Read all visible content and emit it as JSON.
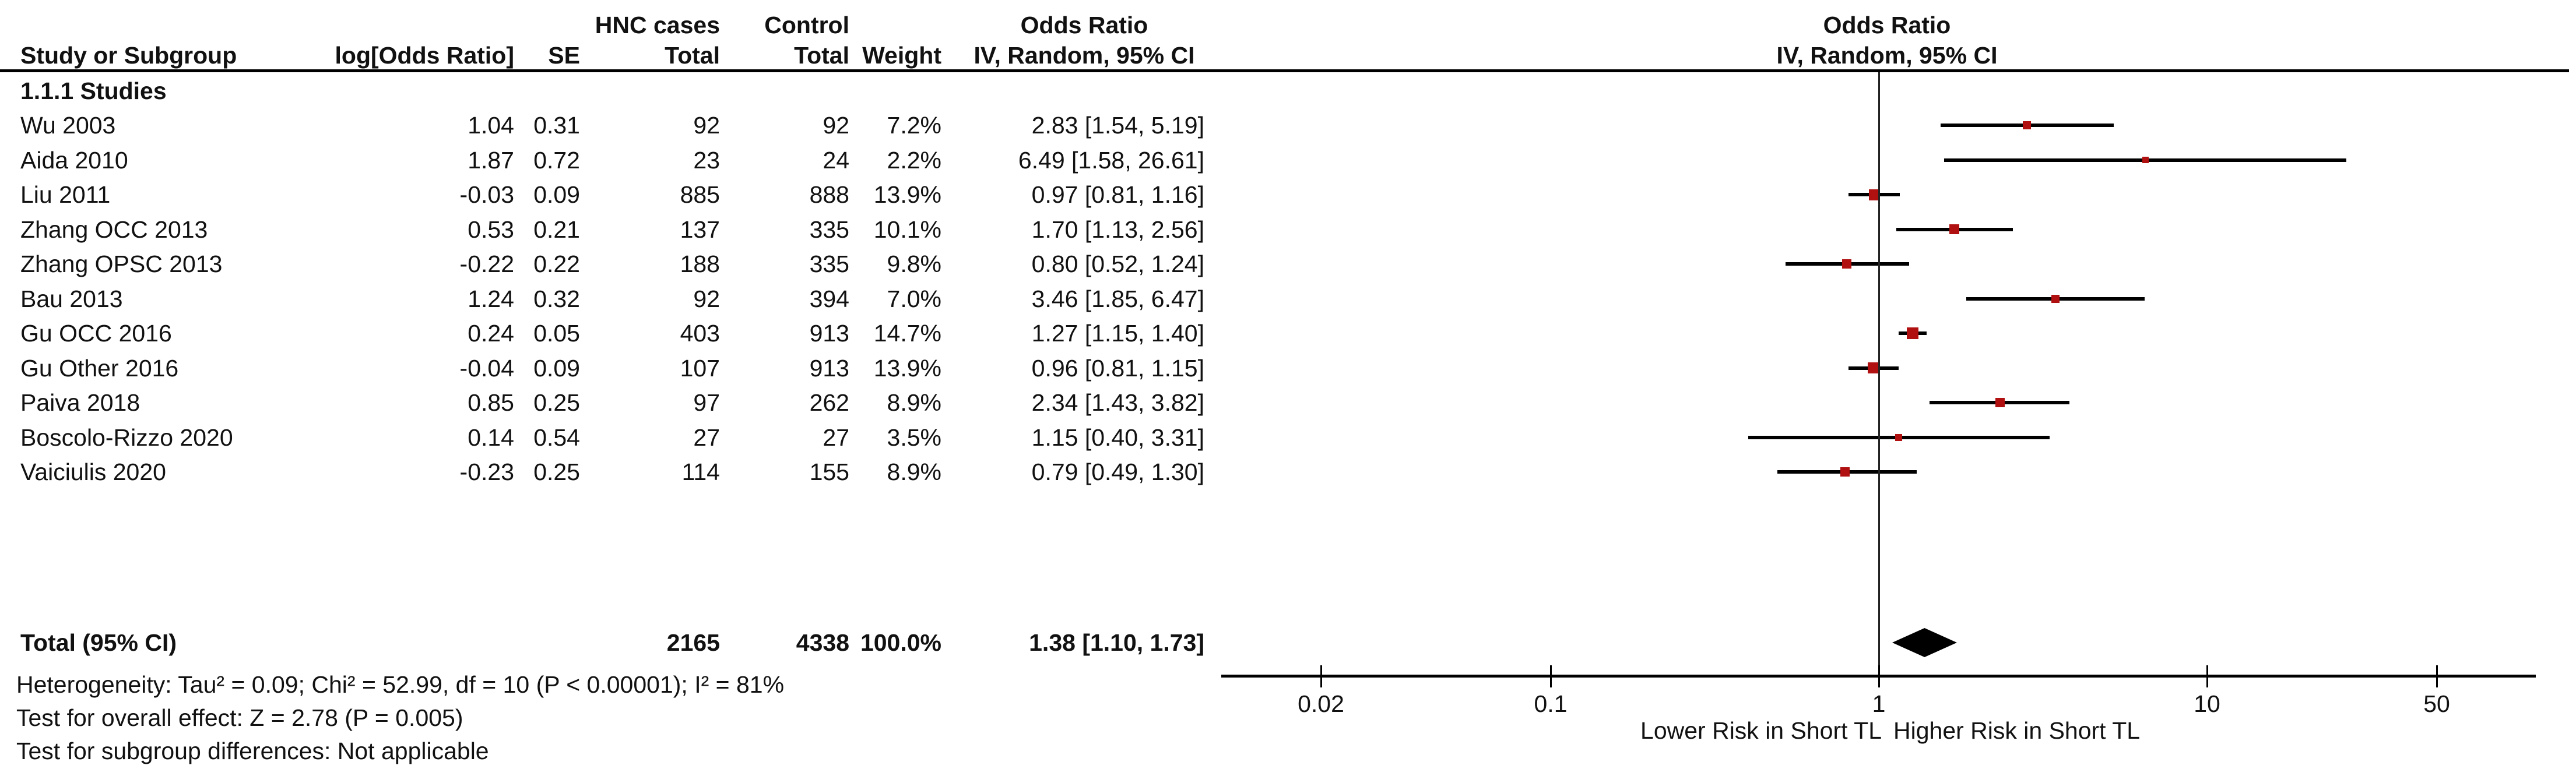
{
  "header": {
    "row1": {
      "hnc_cases": "HNC cases",
      "control": "Control",
      "odds_ratio_left": "Odds Ratio",
      "odds_ratio_right": "Odds Ratio"
    },
    "row2": {
      "study_or_subgroup": "Study or Subgroup",
      "log_odds_ratio": "log[Odds Ratio]",
      "se": "SE",
      "total_hnc": "Total",
      "total_control": "Total",
      "weight": "Weight",
      "iv_random_left": "IV, Random, 95% CI",
      "iv_random_right": "IV, Random, 95% CI"
    }
  },
  "chart_data": {
    "type": "forest",
    "effect_measure": "Odds Ratio",
    "model": "IV, Random, 95% CI",
    "subgroup_label": "1.1.1 Studies",
    "studies": [
      {
        "name": "Wu 2003",
        "log_or": "1.04",
        "se": "0.31",
        "hnc_total": "92",
        "control_total": "92",
        "weight": "7.2%",
        "weight_num": 7.2,
        "or_ci_text": "2.83 [1.54, 5.19]",
        "or": 2.83,
        "lo": 1.54,
        "hi": 5.19
      },
      {
        "name": "Aida 2010",
        "log_or": "1.87",
        "se": "0.72",
        "hnc_total": "23",
        "control_total": "24",
        "weight": "2.2%",
        "weight_num": 2.2,
        "or_ci_text": "6.49 [1.58, 26.61]",
        "or": 6.49,
        "lo": 1.58,
        "hi": 26.61
      },
      {
        "name": "Liu 2011",
        "log_or": "-0.03",
        "se": "0.09",
        "hnc_total": "885",
        "control_total": "888",
        "weight": "13.9%",
        "weight_num": 13.9,
        "or_ci_text": "0.97 [0.81, 1.16]",
        "or": 0.97,
        "lo": 0.81,
        "hi": 1.16
      },
      {
        "name": "Zhang OCC 2013",
        "log_or": "0.53",
        "se": "0.21",
        "hnc_total": "137",
        "control_total": "335",
        "weight": "10.1%",
        "weight_num": 10.1,
        "or_ci_text": "1.70 [1.13, 2.56]",
        "or": 1.7,
        "lo": 1.13,
        "hi": 2.56
      },
      {
        "name": "Zhang OPSC 2013",
        "log_or": "-0.22",
        "se": "0.22",
        "hnc_total": "188",
        "control_total": "335",
        "weight": "9.8%",
        "weight_num": 9.8,
        "or_ci_text": "0.80 [0.52, 1.24]",
        "or": 0.8,
        "lo": 0.52,
        "hi": 1.24
      },
      {
        "name": "Bau 2013",
        "log_or": "1.24",
        "se": "0.32",
        "hnc_total": "92",
        "control_total": "394",
        "weight": "7.0%",
        "weight_num": 7.0,
        "or_ci_text": "3.46 [1.85, 6.47]",
        "or": 3.46,
        "lo": 1.85,
        "hi": 6.47
      },
      {
        "name": "Gu OCC 2016",
        "log_or": "0.24",
        "se": "0.05",
        "hnc_total": "403",
        "control_total": "913",
        "weight": "14.7%",
        "weight_num": 14.7,
        "or_ci_text": "1.27 [1.15, 1.40]",
        "or": 1.27,
        "lo": 1.15,
        "hi": 1.4
      },
      {
        "name": "Gu Other 2016",
        "log_or": "-0.04",
        "se": "0.09",
        "hnc_total": "107",
        "control_total": "913",
        "weight": "13.9%",
        "weight_num": 13.9,
        "or_ci_text": "0.96 [0.81, 1.15]",
        "or": 0.96,
        "lo": 0.81,
        "hi": 1.15
      },
      {
        "name": "Paiva 2018",
        "log_or": "0.85",
        "se": "0.25",
        "hnc_total": "97",
        "control_total": "262",
        "weight": "8.9%",
        "weight_num": 8.9,
        "or_ci_text": "2.34 [1.43, 3.82]",
        "or": 2.34,
        "lo": 1.43,
        "hi": 3.82
      },
      {
        "name": "Boscolo-Rizzo 2020",
        "log_or": "0.14",
        "se": "0.54",
        "hnc_total": "27",
        "control_total": "27",
        "weight": "3.5%",
        "weight_num": 3.5,
        "or_ci_text": "1.15 [0.40, 3.31]",
        "or": 1.15,
        "lo": 0.4,
        "hi": 3.31
      },
      {
        "name": "Vaiciulis 2020",
        "log_or": "-0.23",
        "se": "0.25",
        "hnc_total": "114",
        "control_total": "155",
        "weight": "8.9%",
        "weight_num": 8.9,
        "or_ci_text": "0.79 [0.49, 1.30]",
        "or": 0.79,
        "lo": 0.49,
        "hi": 1.3
      }
    ],
    "total": {
      "label": "Total (95% CI)",
      "hnc_total": "2165",
      "control_total": "4338",
      "weight": "100.0%",
      "or_ci_text": "1.38 [1.10, 1.73]",
      "or": 1.38,
      "lo": 1.1,
      "hi": 1.73
    },
    "footnotes": [
      "Heterogeneity: Tau² = 0.09; Chi² = 52.99, df = 10 (P < 0.00001); I² = 81%",
      "Test for overall effect: Z = 2.78 (P = 0.005)",
      "Test for subgroup differences: Not applicable"
    ],
    "axis": {
      "scale": "log",
      "range": [
        0.01,
        100
      ],
      "ticks": [
        "0.02",
        "0.1",
        "1",
        "10",
        "50"
      ],
      "left_label": "Lower Risk in Short TL",
      "right_label": "Higher Risk in Short TL"
    },
    "colors": {
      "marker": "#b01010",
      "ci_line": "#000000",
      "diamond": "#000000",
      "text": "#111111"
    }
  }
}
